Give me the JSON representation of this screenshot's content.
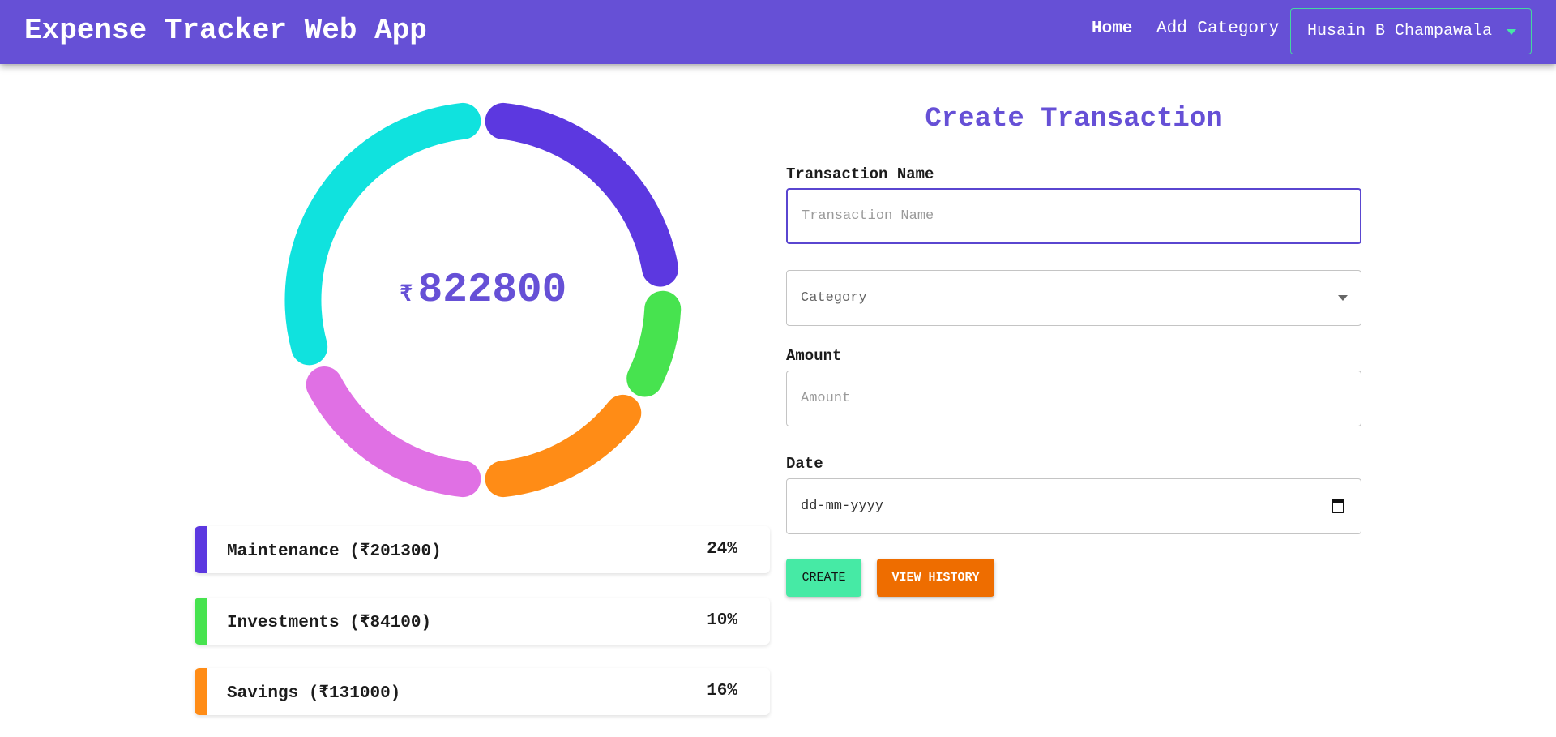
{
  "header": {
    "title": "Expense Tracker Web App",
    "nav": {
      "home": "Home",
      "add_category": "Add Category"
    },
    "user": "Husain B Champawala"
  },
  "summary": {
    "currency": "₹",
    "total": "822800"
  },
  "chart_data": {
    "type": "pie",
    "variant": "donut",
    "total": 822800,
    "segments": [
      {
        "name": "Maintenance",
        "amount": 201300,
        "percent": 24,
        "color": "#5c38e0"
      },
      {
        "name": "Investments",
        "amount": 84100,
        "percent": 10,
        "color": "#47e34f"
      },
      {
        "name": "Savings",
        "amount": 131000,
        "percent": 16,
        "color": "#ff8c16"
      },
      {
        "percent": 19,
        "color": "#e070e4"
      },
      {
        "percent": 31,
        "color": "#10e2de"
      }
    ]
  },
  "legend": [
    {
      "label": "Maintenance (₹201300)",
      "percent": "24%",
      "color": "#5c38e0"
    },
    {
      "label": "Investments (₹84100)",
      "percent": "10%",
      "color": "#47e34f"
    },
    {
      "label": "Savings (₹131000)",
      "percent": "16%",
      "color": "#ff8c16"
    }
  ],
  "form": {
    "title": "Create Transaction",
    "name_label": "Transaction Name",
    "name_placeholder": "Transaction Name",
    "category_placeholder": "Category",
    "amount_label": "Amount",
    "amount_placeholder": "Amount",
    "date_label": "Date",
    "date_placeholder": "dd-mm-yyyy",
    "create": "CREATE",
    "view_history": "VIEW HISTORY"
  },
  "colors": {
    "primary": "#6650d6",
    "accent": "#46eaa5",
    "orange": "#ee6d00"
  }
}
